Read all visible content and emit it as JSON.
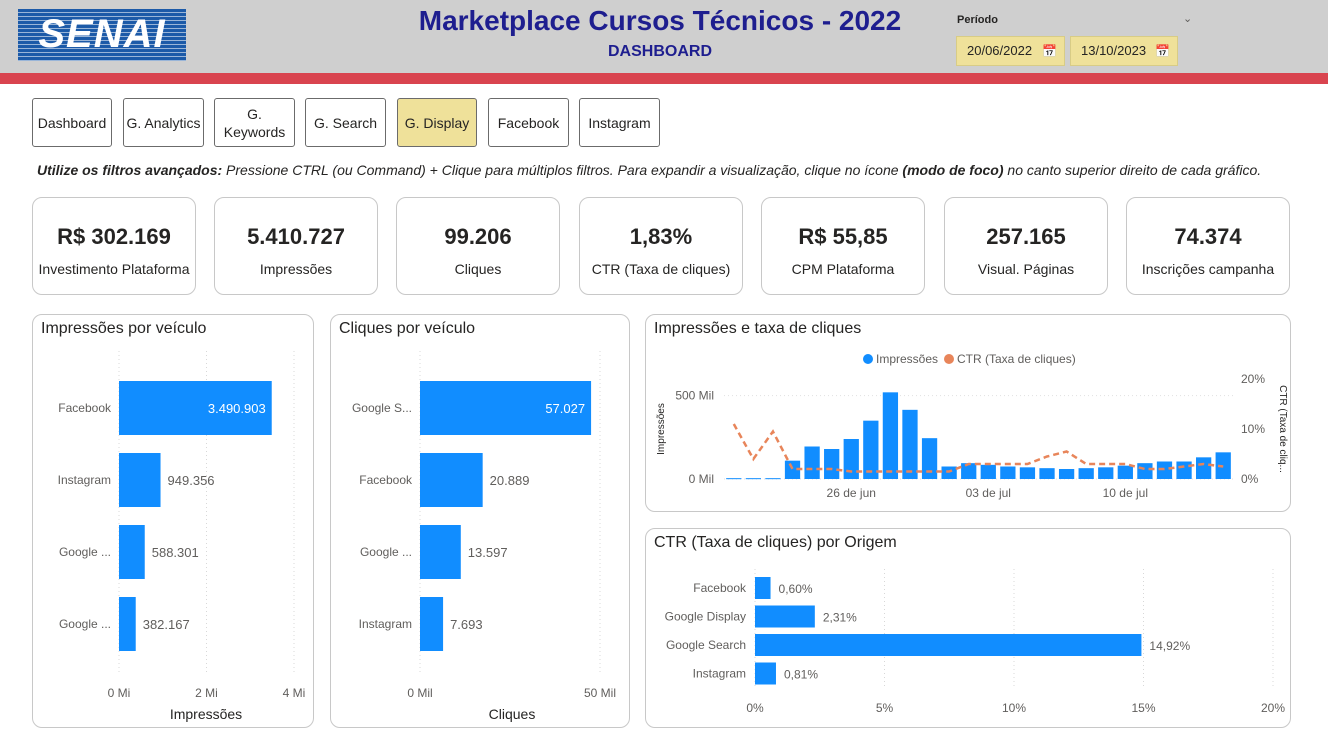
{
  "header": {
    "logo_text": "SENAI",
    "title": "Marketplace Cursos Técnicos - 2022",
    "subtitle": "DASHBOARD",
    "period_label": "Período",
    "date_start": "20/06/2022",
    "date_end": "13/10/2023"
  },
  "nav": [
    {
      "label": "Dashboard",
      "active": false
    },
    {
      "label": "G. Analytics",
      "active": false
    },
    {
      "label": "G. Keywords",
      "active": false
    },
    {
      "label": "G. Search",
      "active": false
    },
    {
      "label": "G. Display",
      "active": true
    },
    {
      "label": "Facebook",
      "active": false
    },
    {
      "label": "Instagram",
      "active": false
    }
  ],
  "instructions": {
    "bold1": "Utilize os filtros avançados:",
    "text1": " Pressione CTRL (ou Command) + Clique para múltiplos filtros. Para expandir a visualização, clique no ícone ",
    "bold2": "(modo de foco)",
    "text2": " no canto superior direito de cada gráfico."
  },
  "kpis": [
    {
      "value": "R$ 302.169",
      "label": "Investimento Plataforma"
    },
    {
      "value": "5.410.727",
      "label": "Impressões"
    },
    {
      "value": "99.206",
      "label": "Cliques"
    },
    {
      "value": "1,83%",
      "label": "CTR (Taxa de cliques)"
    },
    {
      "value": "R$ 55,85",
      "label": "CPM Plataforma"
    },
    {
      "value": "257.165",
      "label": "Visual. Páginas"
    },
    {
      "value": "74.374",
      "label": "Inscrições campanha"
    }
  ],
  "colors": {
    "bar": "#118dff",
    "line": "#e8855a",
    "active": "#efe19a",
    "title": "#1e1e8f",
    "red": "#d9444f"
  },
  "chart_data": [
    {
      "type": "bar",
      "title": "Impressões por veículo",
      "orientation": "horizontal",
      "categories": [
        "Facebook",
        "Instagram",
        "Google ...",
        "Google ..."
      ],
      "values": [
        3490903,
        949356,
        588301,
        382167
      ],
      "value_labels": [
        "3.490.903",
        "949.356",
        "588.301",
        "382.167"
      ],
      "xlabel": "Impressões",
      "xlim": [
        0,
        4000000
      ],
      "ticks": [
        "0 Mi",
        "2 Mi",
        "4 Mi"
      ]
    },
    {
      "type": "bar",
      "title": "Cliques por veículo",
      "orientation": "horizontal",
      "categories": [
        "Google S...",
        "Facebook",
        "Google ...",
        "Instagram"
      ],
      "values": [
        57027,
        20889,
        13597,
        7693
      ],
      "value_labels": [
        "57.027",
        "20.889",
        "13.597",
        "7.693"
      ],
      "xlabel": "Cliques",
      "xlim": [
        0,
        60000
      ],
      "ticks": [
        "0 Mil",
        "50 Mil"
      ]
    },
    {
      "type": "bar",
      "title": "Impressões e taxa de cliques",
      "combo": "column + line (dual axis)",
      "legend": [
        "Impressões",
        "CTR (Taxa de cliques)"
      ],
      "legend_position": "top-center",
      "ylabel": "Impressões",
      "y2label": "CTR (Taxa de cliq...",
      "y_ticks": [
        "0 Mil",
        "500 Mil"
      ],
      "y2_ticks": [
        "0%",
        "10%",
        "20%"
      ],
      "x_ticks": [
        "26 de jun",
        "03 de jul",
        "10 de jul"
      ],
      "ylim": [
        0,
        600000
      ],
      "y2lim": [
        0,
        0.2
      ],
      "x": [
        "2022-06-20",
        "2022-06-21",
        "2022-06-22",
        "2022-06-23",
        "2022-06-24",
        "2022-06-25",
        "2022-06-26",
        "2022-06-27",
        "2022-06-28",
        "2022-06-29",
        "2022-06-30",
        "2022-07-01",
        "2022-07-02",
        "2022-07-03",
        "2022-07-04",
        "2022-07-05",
        "2022-07-06",
        "2022-07-07",
        "2022-07-08",
        "2022-07-09",
        "2022-07-10",
        "2022-07-11",
        "2022-07-12",
        "2022-07-13",
        "2022-07-14",
        "2022-07-15"
      ],
      "series": [
        {
          "name": "Impressões",
          "values": [
            5000,
            5000,
            5000,
            110000,
            195000,
            180000,
            240000,
            350000,
            520000,
            415000,
            245000,
            75000,
            95000,
            85000,
            75000,
            70000,
            65000,
            60000,
            65000,
            70000,
            80000,
            95000,
            105000,
            105000,
            130000,
            160000
          ]
        },
        {
          "name": "CTR (Taxa de cliques)",
          "values": [
            0.11,
            0.04,
            0.095,
            0.02,
            0.02,
            0.02,
            0.015,
            0.015,
            0.015,
            0.015,
            0.015,
            0.015,
            0.03,
            0.03,
            0.03,
            0.03,
            0.045,
            0.055,
            0.03,
            0.03,
            0.03,
            0.02,
            0.02,
            0.025,
            0.03,
            0.025
          ]
        }
      ]
    },
    {
      "type": "bar",
      "title": "CTR (Taxa de cliques) por Origem",
      "orientation": "horizontal",
      "categories": [
        "Facebook",
        "Google Display",
        "Google Search",
        "Instagram"
      ],
      "values": [
        0.6,
        2.31,
        14.92,
        0.81
      ],
      "value_labels": [
        "0,60%",
        "2,31%",
        "14,92%",
        "0,81%"
      ],
      "xlim": [
        0,
        20
      ],
      "ticks": [
        "0%",
        "5%",
        "10%",
        "15%",
        "20%"
      ]
    }
  ]
}
